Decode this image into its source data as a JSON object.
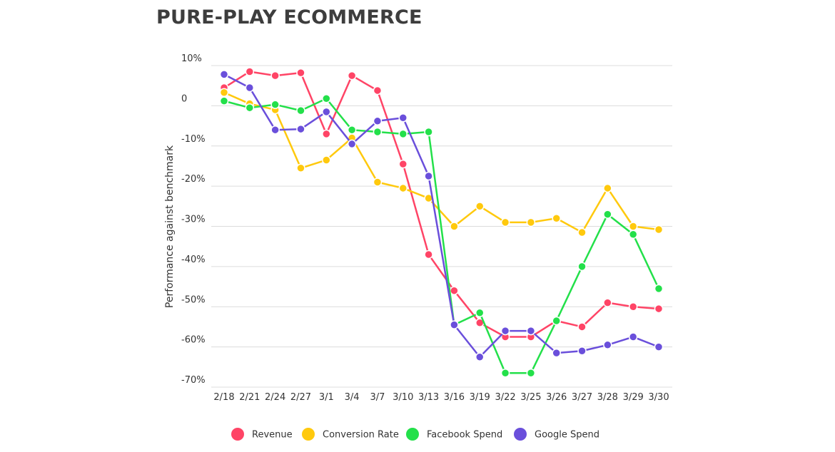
{
  "chart_data": {
    "type": "line",
    "title": "PURE-PLAY ECOMMERCE",
    "xlabel": "",
    "ylabel": "Performance against benchmark",
    "categories": [
      "2/18",
      "2/21",
      "2/24",
      "2/27",
      "3/1",
      "3/4",
      "3/7",
      "3/10",
      "3/13",
      "3/16",
      "3/19",
      "3/22",
      "3/25",
      "3/26",
      "3/27",
      "3/28",
      "3/29",
      "3/30"
    ],
    "ylim": [
      -70,
      10
    ],
    "yticks": [
      10,
      0,
      -10,
      -20,
      -30,
      -40,
      -50,
      -60,
      -70
    ],
    "ytick_labels": [
      "10%",
      "0",
      "-10%",
      "-20%",
      "-30%",
      "-40%",
      "-50%",
      "-60%",
      "-70%"
    ],
    "grid": true,
    "legend_position": "bottom",
    "series": [
      {
        "name": "Revenue",
        "color": "#ff4466",
        "values": [
          4.5,
          8.5,
          7.5,
          8.2,
          -7,
          7.5,
          3.8,
          -14.5,
          -37,
          -46,
          -54,
          -57.5,
          -57.5,
          -53.5,
          -55,
          -49,
          -50,
          -50.5
        ]
      },
      {
        "name": "Conversion Rate",
        "color": "#ffc90d",
        "values": [
          3.3,
          0.5,
          -1,
          -15.5,
          -13.5,
          -8,
          -19,
          -20.5,
          -23,
          -30,
          -25,
          -29,
          -29,
          -28,
          -31.5,
          -20.5,
          -30,
          -30.8
        ]
      },
      {
        "name": "Facebook Spend",
        "color": "#23e04a",
        "values": [
          1.2,
          -0.5,
          0.3,
          -1.2,
          1.8,
          -6,
          -6.5,
          -7,
          -6.5,
          -54.5,
          -51.5,
          -66.5,
          -66.5,
          -53.5,
          -40,
          -27,
          -32,
          -45.5
        ]
      },
      {
        "name": "Google Spend",
        "color": "#6a4fdb",
        "values": [
          7.8,
          4.5,
          -6,
          -5.8,
          -1.5,
          -9.5,
          -3.8,
          -3,
          -17.5,
          -54.5,
          -62.5,
          -56,
          -56,
          -61.5,
          -61,
          -59.5,
          -57.5,
          -60
        ]
      }
    ]
  }
}
